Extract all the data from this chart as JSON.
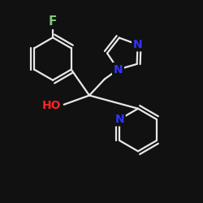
{
  "bg_color": "#111111",
  "bond_color": "#e8e8e8",
  "atom_colors": {
    "F": "#7fc97f",
    "N": "#3333ff",
    "O": "#ff2222",
    "C": "#e8e8e8"
  },
  "lw": 1.6
}
